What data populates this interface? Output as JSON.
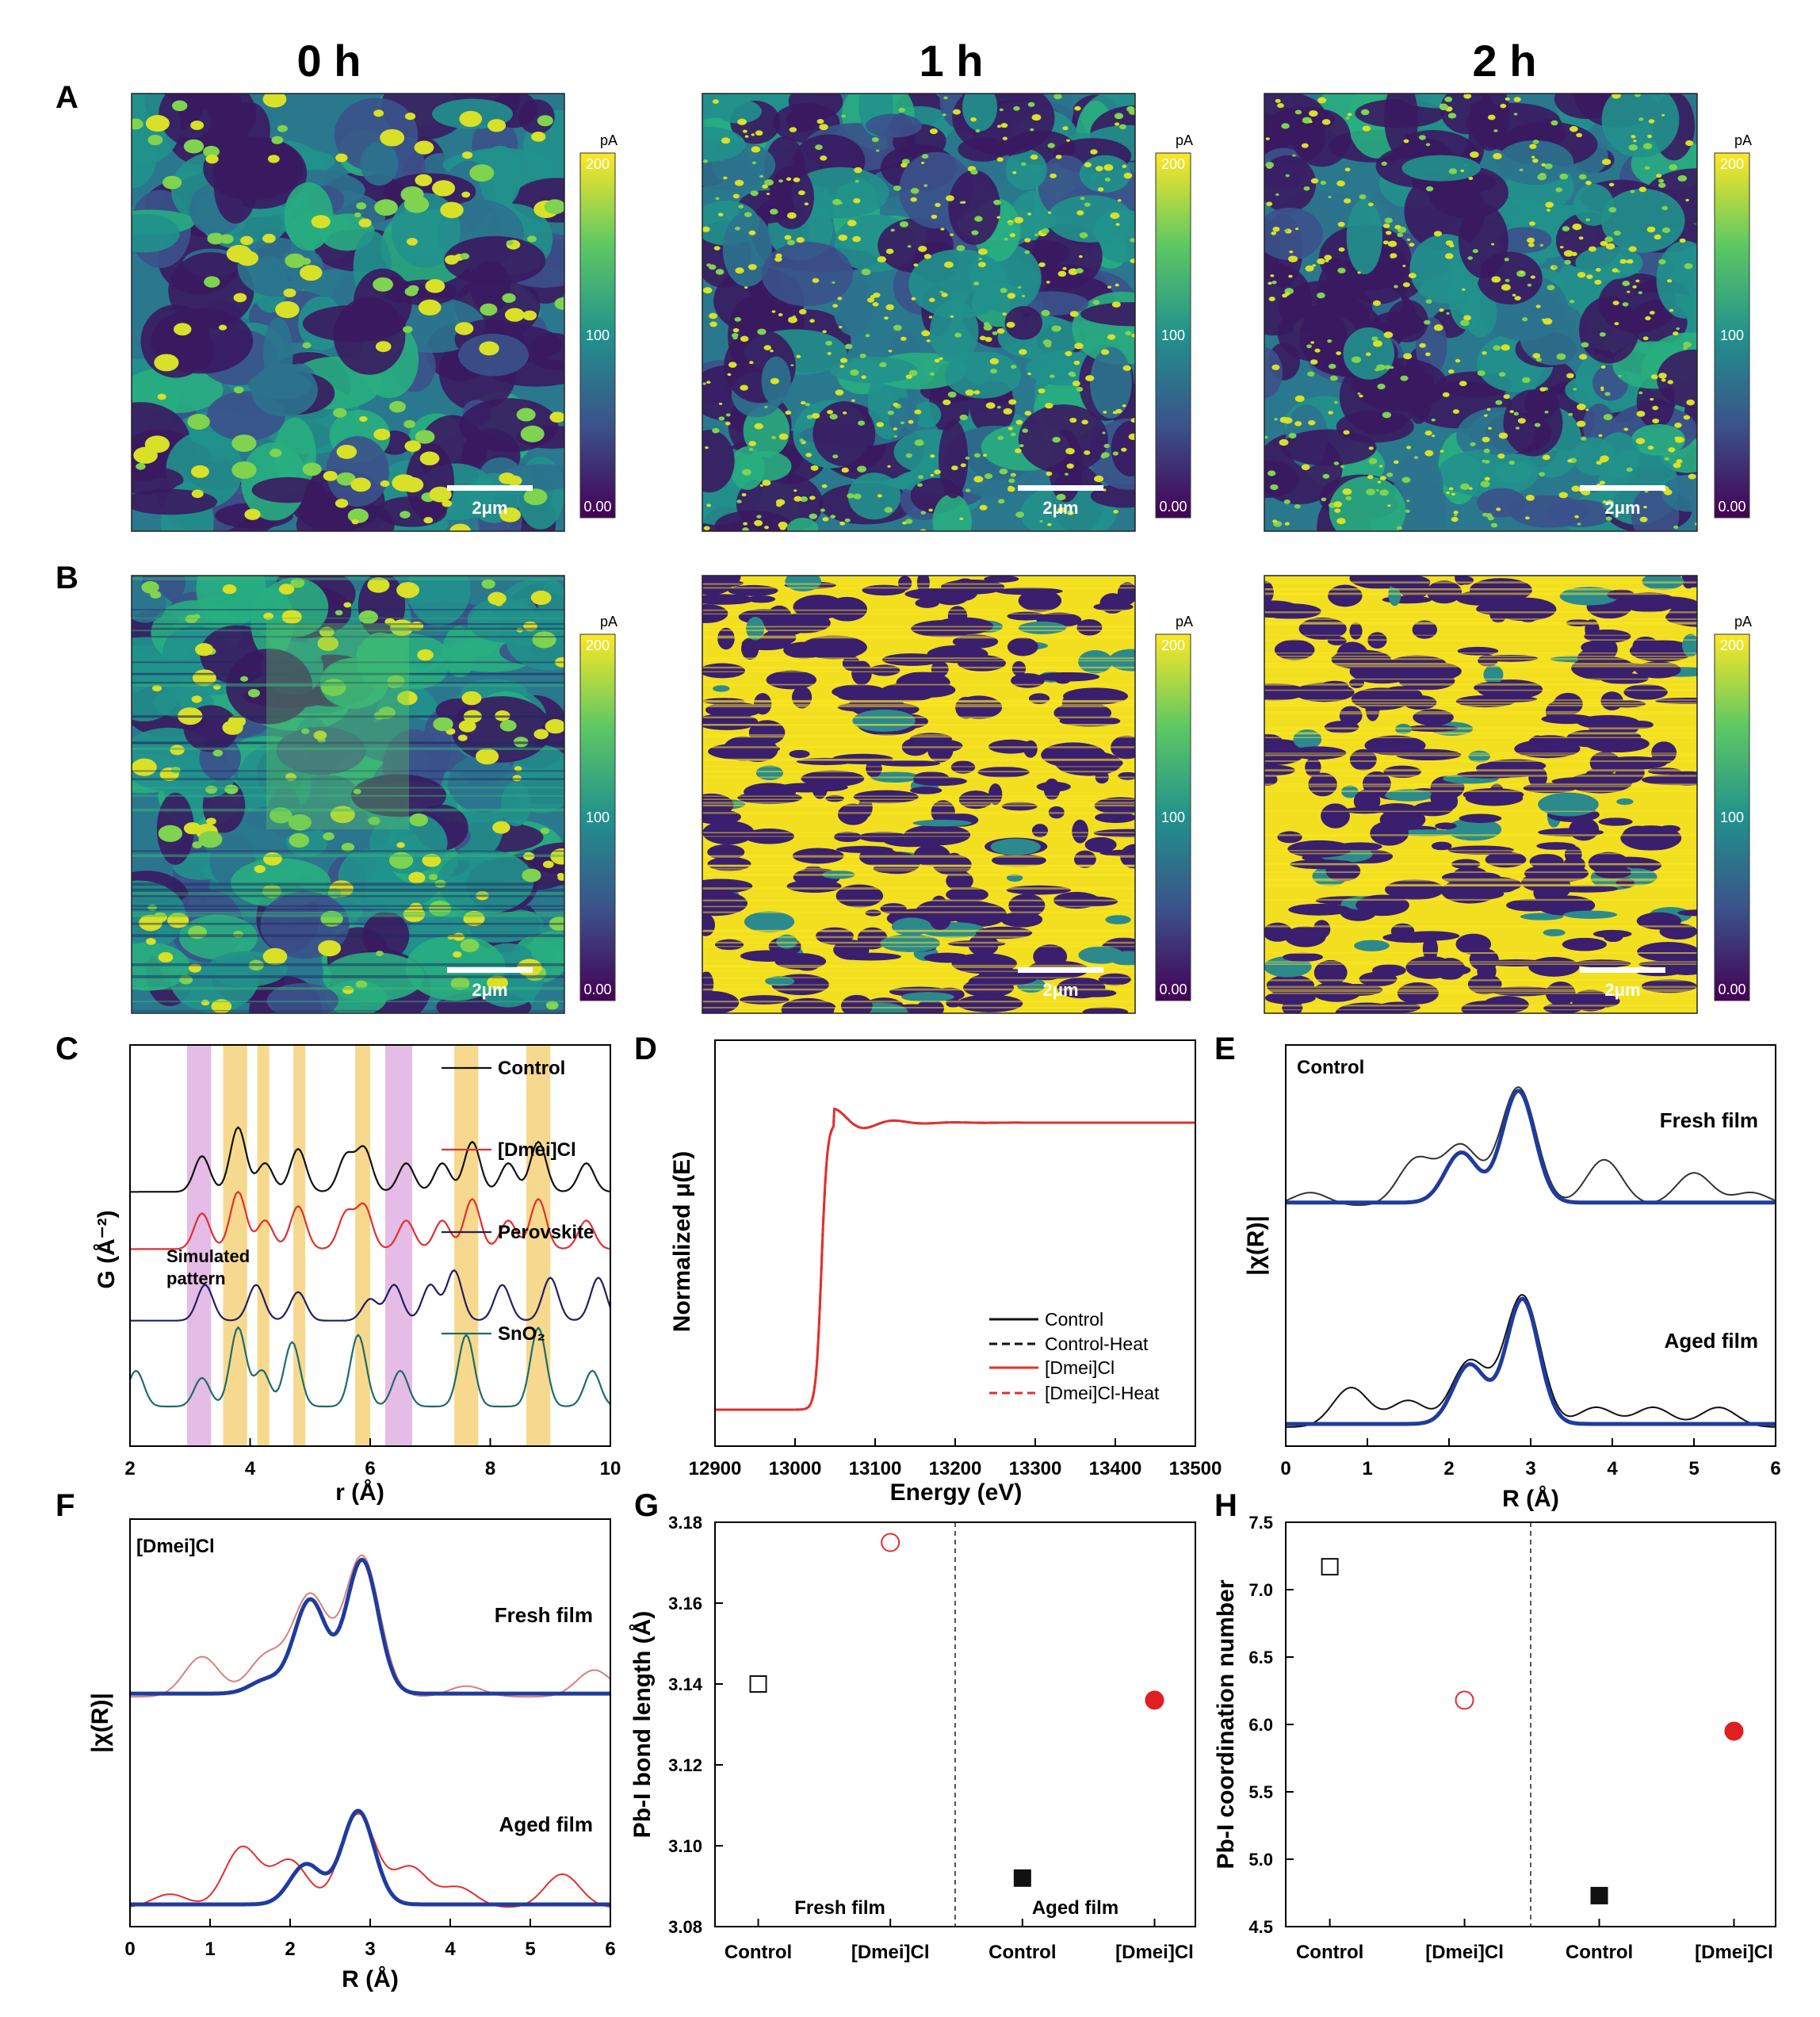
{
  "afm": {
    "time_labels": [
      "0 h",
      "1 h",
      "2 h"
    ],
    "row_labels": [
      "A",
      "B"
    ],
    "colorbar": {
      "unit": "pA",
      "ticks": [
        "200",
        "100",
        "0.00"
      ],
      "ticks_lower": [
        "200",
        "100",
        "0.00"
      ]
    },
    "scale_bar": "2μm",
    "colors": {
      "low": "#440154",
      "mid": "#21918c",
      "high": "#fde725"
    },
    "coverage": [
      [
        {
          "dark": 0.38,
          "bright": 0.12,
          "pattern": "coarse"
        },
        {
          "dark": 0.4,
          "bright": 0.08,
          "pattern": "speckled"
        },
        {
          "dark": 0.42,
          "bright": 0.08,
          "pattern": "speckled"
        }
      ],
      [
        {
          "dark": 0.2,
          "bright": 0.3,
          "pattern": "streaky"
        },
        {
          "dark": 0.35,
          "bright": 0.6,
          "pattern": "saturated"
        },
        {
          "dark": 0.3,
          "bright": 0.65,
          "pattern": "saturated"
        }
      ]
    ]
  },
  "chart_data": [
    {
      "id": "C",
      "type": "line",
      "panel_label": "C",
      "xlabel": "r (Å)",
      "ylabel": "G (Å⁻²)",
      "xlim": [
        2,
        10
      ],
      "xticks": [
        "2",
        "4",
        "6",
        "8",
        "10"
      ],
      "annotation": "Simulated pattern",
      "highlight_bands": [
        {
          "x": [
            2.95,
            3.35
          ],
          "color": "#e0b0e0"
        },
        {
          "x": [
            3.55,
            3.95
          ],
          "color": "#f5d27a"
        },
        {
          "x": [
            4.12,
            4.32
          ],
          "color": "#f5d27a"
        },
        {
          "x": [
            4.72,
            4.92
          ],
          "color": "#f5d27a"
        },
        {
          "x": [
            5.75,
            6.0
          ],
          "color": "#f5d27a"
        },
        {
          "x": [
            6.25,
            6.7
          ],
          "color": "#e0b0e0"
        },
        {
          "x": [
            7.4,
            7.8
          ],
          "color": "#f5d27a"
        },
        {
          "x": [
            8.6,
            9.0
          ],
          "color": "#f5d27a"
        }
      ],
      "series": [
        {
          "name": "Control",
          "color": "#111111",
          "offset": 3.0,
          "peaks": [
            [
              3.2,
              0.5
            ],
            [
              3.8,
              0.9
            ],
            [
              4.25,
              0.4
            ],
            [
              4.8,
              0.6
            ],
            [
              5.6,
              0.5
            ],
            [
              5.9,
              0.6
            ],
            [
              6.6,
              0.4
            ],
            [
              7.2,
              0.4
            ],
            [
              7.7,
              0.7
            ],
            [
              8.3,
              0.4
            ],
            [
              8.8,
              0.7
            ],
            [
              9.6,
              0.4
            ]
          ]
        },
        {
          "name": "[Dmei]Cl",
          "color": "#e03030",
          "offset": 2.2,
          "peaks": [
            [
              3.2,
              0.5
            ],
            [
              3.8,
              0.8
            ],
            [
              4.25,
              0.4
            ],
            [
              4.8,
              0.6
            ],
            [
              5.6,
              0.5
            ],
            [
              5.9,
              0.6
            ],
            [
              6.6,
              0.4
            ],
            [
              7.2,
              0.4
            ],
            [
              7.7,
              0.7
            ],
            [
              8.3,
              0.4
            ],
            [
              8.8,
              0.7
            ],
            [
              9.6,
              0.4
            ]
          ]
        },
        {
          "name": "Perovskite",
          "color": "#1f2060",
          "offset": 1.2,
          "peaks": [
            [
              3.25,
              0.5
            ],
            [
              4.1,
              0.5
            ],
            [
              4.8,
              0.4
            ],
            [
              6.0,
              0.3
            ],
            [
              6.4,
              0.5
            ],
            [
              7.0,
              0.5
            ],
            [
              7.4,
              0.7
            ],
            [
              8.2,
              0.5
            ],
            [
              9.0,
              0.6
            ],
            [
              9.8,
              0.6
            ]
          ]
        },
        {
          "name": "SnO₂",
          "color": "#1f6b6b",
          "offset": 0.0,
          "peaks": [
            [
              2.1,
              0.5
            ],
            [
              3.2,
              0.4
            ],
            [
              3.8,
              1.1
            ],
            [
              4.2,
              0.5
            ],
            [
              4.7,
              0.9
            ],
            [
              5.8,
              1.0
            ],
            [
              6.5,
              0.5
            ],
            [
              7.6,
              1.0
            ],
            [
              8.8,
              1.1
            ],
            [
              9.7,
              0.5
            ]
          ]
        }
      ]
    },
    {
      "id": "D",
      "type": "line",
      "panel_label": "D",
      "xlabel": "Energy (eV)",
      "ylabel": "Normalized μ(E)",
      "xlim": [
        12900,
        13500
      ],
      "xticks": [
        "12900",
        "13000",
        "13100",
        "13200",
        "13300",
        "13400",
        "13500"
      ],
      "edge_energy": 13033,
      "pre_edge_level": 0.0,
      "post_edge_level": 1.0,
      "series": [
        {
          "name": "Control",
          "color": "#111111",
          "style": "solid"
        },
        {
          "name": "Control-Heat",
          "color": "#111111",
          "style": "dashed"
        },
        {
          "name": "[Dmei]Cl",
          "color": "#e03030",
          "style": "solid"
        },
        {
          "name": "[Dmei]Cl-Heat",
          "color": "#e03030",
          "style": "dashed"
        }
      ]
    },
    {
      "id": "E",
      "type": "line",
      "panel_label": "E",
      "xlabel": "R (Å)",
      "ylabel": "|χ(R)|",
      "xlim": [
        0,
        6
      ],
      "xticks": [
        "0",
        "1",
        "2",
        "3",
        "4",
        "5",
        "6"
      ],
      "inner_label": "Control",
      "curves": [
        {
          "label": "Fresh film",
          "offset": 1.6,
          "data_color": "#333333",
          "fit_color": "#1f3c9c",
          "data_peaks": [
            [
              0.3,
              0.1
            ],
            [
              1.6,
              0.35
            ],
            [
              2.15,
              0.45
            ],
            [
              2.85,
              0.9
            ],
            [
              3.9,
              0.35
            ],
            [
              5.0,
              0.25
            ],
            [
              5.7,
              0.1
            ]
          ],
          "fit_peaks": [
            [
              2.15,
              0.38
            ],
            [
              2.85,
              0.85
            ]
          ]
        },
        {
          "label": "Aged film",
          "offset": 0.0,
          "data_color": "#111111",
          "fit_color": "#1f3c9c",
          "data_peaks": [
            [
              0.8,
              0.3
            ],
            [
              1.5,
              0.2
            ],
            [
              2.25,
              0.5
            ],
            [
              2.9,
              1.0
            ],
            [
              3.8,
              0.15
            ],
            [
              4.5,
              0.15
            ],
            [
              5.3,
              0.15
            ]
          ],
          "fit_peaks": [
            [
              2.25,
              0.45
            ],
            [
              2.9,
              0.95
            ]
          ]
        }
      ]
    },
    {
      "id": "F",
      "type": "line",
      "panel_label": "F",
      "xlabel": "R (Å)",
      "ylabel": "|χ(R)|",
      "xlim": [
        0,
        6
      ],
      "xticks": [
        "0",
        "1",
        "2",
        "3",
        "4",
        "5",
        "6"
      ],
      "inner_label": "[Dmei]Cl",
      "curves": [
        {
          "label": "Fresh film",
          "offset": 1.5,
          "data_color": "#d88080",
          "fit_color": "#1f3c9c",
          "data_peaks": [
            [
              0.9,
              0.3
            ],
            [
              1.7,
              0.3
            ],
            [
              2.25,
              0.75
            ],
            [
              2.9,
              1.05
            ],
            [
              4.2,
              0.08
            ],
            [
              5.8,
              0.2
            ]
          ],
          "fit_peaks": [
            [
              1.7,
              0.1
            ],
            [
              2.25,
              0.7
            ],
            [
              2.9,
              1.0
            ]
          ]
        },
        {
          "label": "Aged film",
          "offset": 0.0,
          "data_color": "#e03030",
          "fit_color": "#1f3c9c",
          "data_peaks": [
            [
              0.5,
              0.1
            ],
            [
              1.4,
              0.45
            ],
            [
              2.0,
              0.35
            ],
            [
              2.85,
              0.7
            ],
            [
              3.5,
              0.3
            ],
            [
              4.1,
              0.15
            ],
            [
              5.4,
              0.25
            ]
          ],
          "fit_peaks": [
            [
              2.2,
              0.3
            ],
            [
              2.85,
              0.7
            ]
          ]
        }
      ]
    },
    {
      "id": "G",
      "type": "scatter",
      "panel_label": "G",
      "ylabel": "Pb-I bond length (Å)",
      "ylim": [
        3.08,
        3.18
      ],
      "yticks": [
        "3.08",
        "3.10",
        "3.12",
        "3.14",
        "3.16",
        "3.18"
      ],
      "categories": [
        "Control",
        "[Dmei]Cl",
        "Control",
        "[Dmei]Cl"
      ],
      "group_labels": [
        "Fresh film",
        "Aged film"
      ],
      "points": [
        {
          "category": 0,
          "value": 3.14,
          "marker": "square",
          "filled": false,
          "color": "#111111"
        },
        {
          "category": 1,
          "value": 3.175,
          "marker": "circle",
          "filled": false,
          "color": "#e03030"
        },
        {
          "category": 2,
          "value": 3.092,
          "marker": "square",
          "filled": true,
          "color": "#111111"
        },
        {
          "category": 3,
          "value": 3.136,
          "marker": "circle",
          "filled": true,
          "color": "#e02020"
        }
      ]
    },
    {
      "id": "H",
      "type": "scatter",
      "panel_label": "H",
      "ylabel": "Pb-I coordination number",
      "ylim": [
        4.5,
        7.5
      ],
      "yticks": [
        "4.5",
        "5.0",
        "5.5",
        "6.0",
        "6.5",
        "7.0",
        "7.5"
      ],
      "categories": [
        "Control",
        "[Dmei]Cl",
        "Control",
        "[Dmei]Cl"
      ],
      "points": [
        {
          "category": 0,
          "value": 7.17,
          "marker": "square",
          "filled": false,
          "color": "#111111"
        },
        {
          "category": 1,
          "value": 6.18,
          "marker": "circle",
          "filled": false,
          "color": "#e03030"
        },
        {
          "category": 2,
          "value": 4.73,
          "marker": "square",
          "filled": true,
          "color": "#111111"
        },
        {
          "category": 3,
          "value": 5.95,
          "marker": "circle",
          "filled": true,
          "color": "#e02020"
        }
      ]
    }
  ]
}
